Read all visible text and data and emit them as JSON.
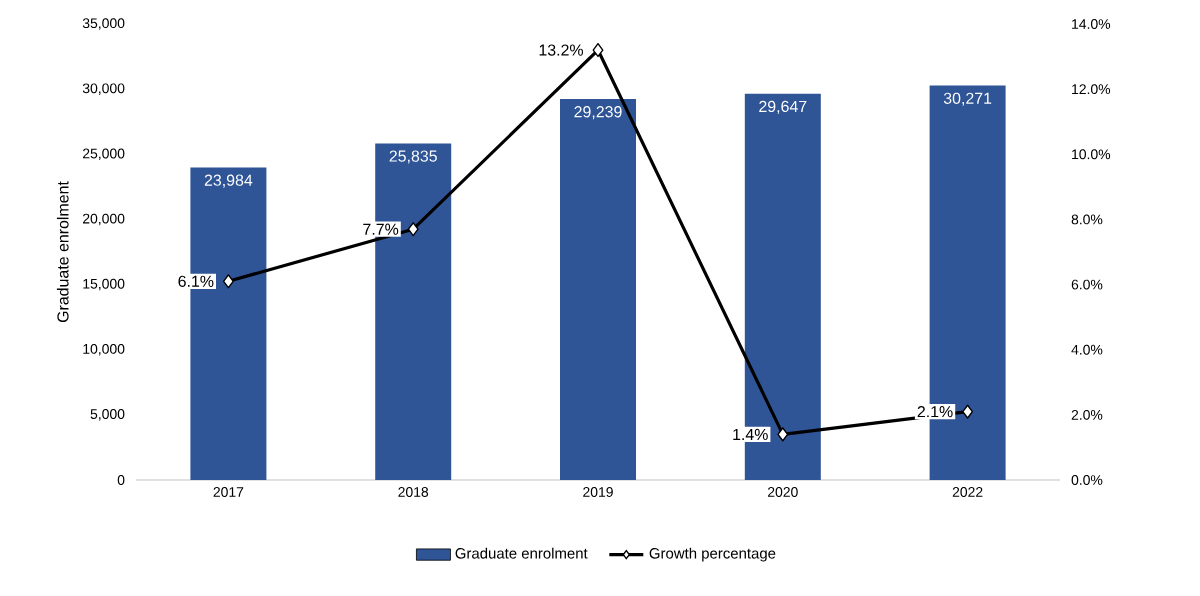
{
  "chart_data": {
    "type": "bar",
    "categories": [
      "2017",
      "2018",
      "2019",
      "2020",
      "2022"
    ],
    "ylabel": "Graduate enrolment",
    "series": [
      {
        "name": "Graduate enrolment",
        "color": "#2f5597",
        "values": [
          23984,
          25835,
          29239,
          29647,
          30271
        ],
        "value_labels": [
          "23,984",
          "25,835",
          "29,239",
          "29,647",
          "30,271"
        ]
      },
      {
        "name": "Growth percentage",
        "type": "line",
        "axis": "y2",
        "color": "#000000",
        "marker": "diamond",
        "values": [
          6.1,
          7.7,
          13.2,
          1.4,
          2.1
        ],
        "value_labels": [
          "6.1%",
          "7.7%",
          "13.2%",
          "1.4%",
          "2.1%"
        ]
      }
    ],
    "ylim": [
      0,
      35000
    ],
    "yticks": [
      0,
      {
        "value": 5000,
        "label": "5,000"
      },
      {
        "value": 10000,
        "label": "10,000"
      },
      {
        "value": 15000,
        "label": "15,000"
      },
      {
        "value": 20000,
        "label": "20,000"
      },
      {
        "value": 25000,
        "label": "25,000"
      },
      {
        "value": 30000,
        "label": "30,000"
      },
      {
        "value": 35000,
        "label": "35,000"
      }
    ],
    "y2lim": [
      0,
      14
    ],
    "y2ticks": [
      {
        "value": 0,
        "label": "0.0%"
      },
      {
        "value": 2,
        "label": "2.0%"
      },
      {
        "value": 4,
        "label": "4.0%"
      },
      {
        "value": 6,
        "label": "6.0%"
      },
      {
        "value": 8,
        "label": "8.0%"
      },
      {
        "value": 10,
        "label": "10.0%"
      },
      {
        "value": 12,
        "label": "12.0%"
      },
      {
        "value": 14,
        "label": "14.0%"
      }
    ],
    "legend": "bottom",
    "grid": false
  }
}
